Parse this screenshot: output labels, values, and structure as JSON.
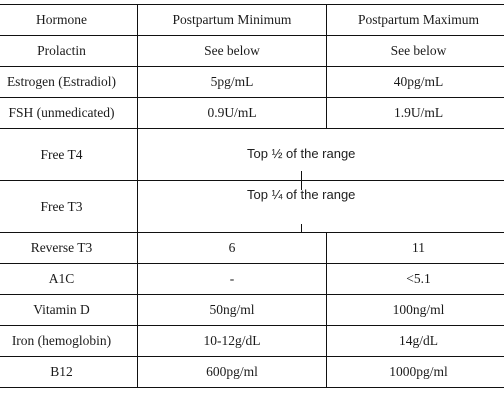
{
  "table": {
    "headers": [
      "Hormone",
      "Postpartum Minimum",
      "Postpartum Maximum"
    ],
    "rows": [
      [
        "Prolactin",
        "See below",
        "See below"
      ],
      [
        "Estrogen (Estradiol)",
        "5pg/mL",
        "40pg/mL"
      ],
      [
        "FSH (unmedicated)",
        "0.9U/mL",
        "1.9U/mL"
      ],
      [
        "Free T4",
        "Top ½ of the range"
      ],
      [
        "Free T3",
        "Top ¼ of the range"
      ],
      [
        "Reverse T3",
        "6",
        "11"
      ],
      [
        "A1C",
        "-",
        "<5.1"
      ],
      [
        "Vitamin D",
        "50ng/ml",
        "100ng/ml"
      ],
      [
        "Iron (hemoglobin)",
        "10-12g/dL",
        "14g/dL"
      ],
      [
        "B12",
        "600pg/ml",
        "1000pg/ml"
      ]
    ]
  }
}
